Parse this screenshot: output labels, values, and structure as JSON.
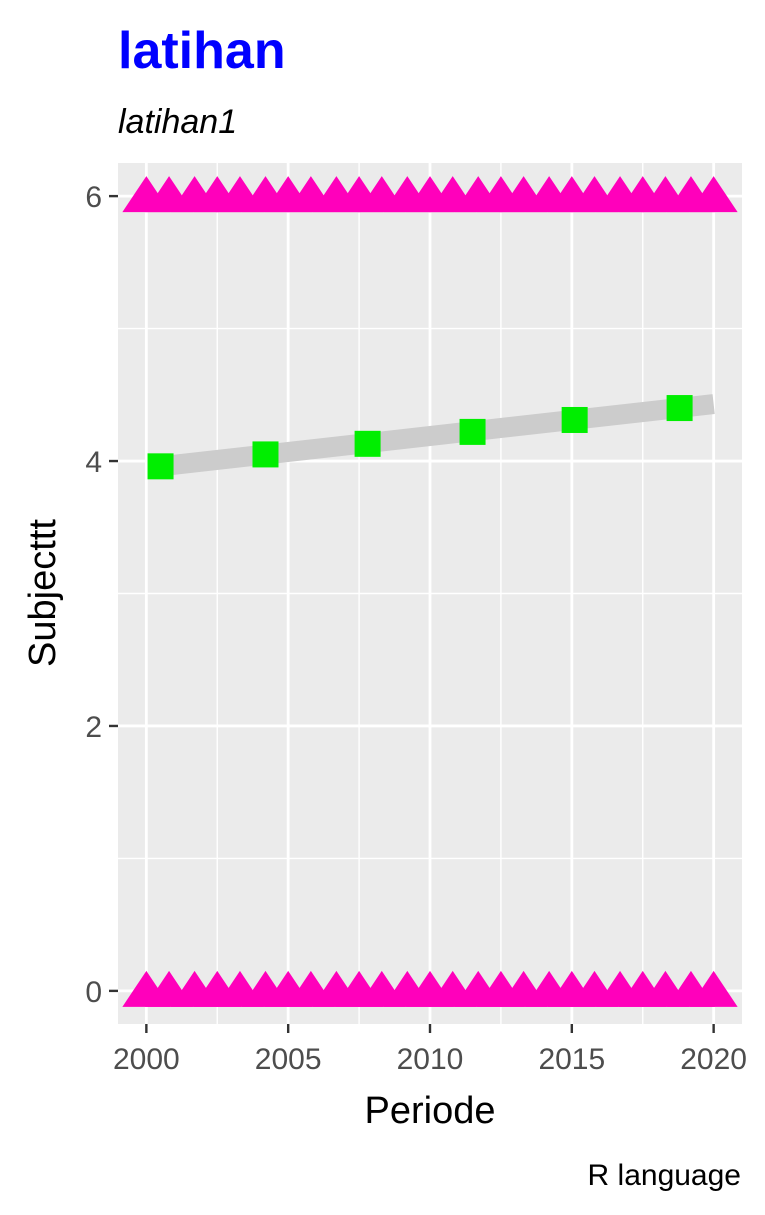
{
  "chart_data": {
    "type": "line",
    "title": "latihan",
    "subtitle": "latihan1",
    "caption": "R language",
    "xlabel": "Periode",
    "ylabel": "Subjecttt",
    "xlim": [
      1999,
      2021
    ],
    "ylim": [
      -0.25,
      6.25
    ],
    "x_ticks": [
      2000,
      2005,
      2010,
      2015,
      2020
    ],
    "x_tick_labels": [
      "2000",
      "2005",
      "2010",
      "2015",
      "2020"
    ],
    "y_ticks": [
      0,
      2,
      4,
      6
    ],
    "y_tick_labels": [
      "0",
      "2",
      "4",
      "6"
    ],
    "grid": true,
    "legend": "none",
    "series": [
      {
        "type": "points",
        "marker": "square",
        "color": "#00ee00",
        "x": [
          2000.5,
          2004.2,
          2007.8,
          2011.5,
          2015.1,
          2018.8
        ],
        "y": [
          3.96,
          4.05,
          4.13,
          4.22,
          4.31,
          4.4
        ]
      },
      {
        "type": "smooth_band",
        "color": "#cccccc",
        "x": [
          2000.5,
          2020
        ],
        "y": [
          3.96,
          4.43
        ]
      },
      {
        "type": "points",
        "marker": "triangle",
        "color": "#ff00bb",
        "y_constant": 6,
        "x": [
          2000,
          2000.8,
          2001.7,
          2002.5,
          2003.3,
          2004.2,
          2005,
          2005.8,
          2006.7,
          2007.5,
          2008.3,
          2009.2,
          2010,
          2010.8,
          2011.7,
          2012.5,
          2013.3,
          2014.2,
          2015,
          2015.8,
          2016.7,
          2017.5,
          2018.3,
          2019.2,
          2020
        ]
      },
      {
        "type": "points",
        "marker": "triangle",
        "color": "#ff00bb",
        "y_constant": 0,
        "x": [
          2000,
          2000.8,
          2001.7,
          2002.5,
          2003.3,
          2004.2,
          2005,
          2005.8,
          2006.7,
          2007.5,
          2008.3,
          2009.2,
          2010,
          2010.8,
          2011.7,
          2012.5,
          2013.3,
          2014.2,
          2015,
          2015.8,
          2016.7,
          2017.5,
          2018.3,
          2019.2,
          2020
        ]
      }
    ],
    "colors": {
      "title": "#0000ff",
      "panel_bg": "#ebebeb",
      "grid": "#ffffff"
    }
  }
}
